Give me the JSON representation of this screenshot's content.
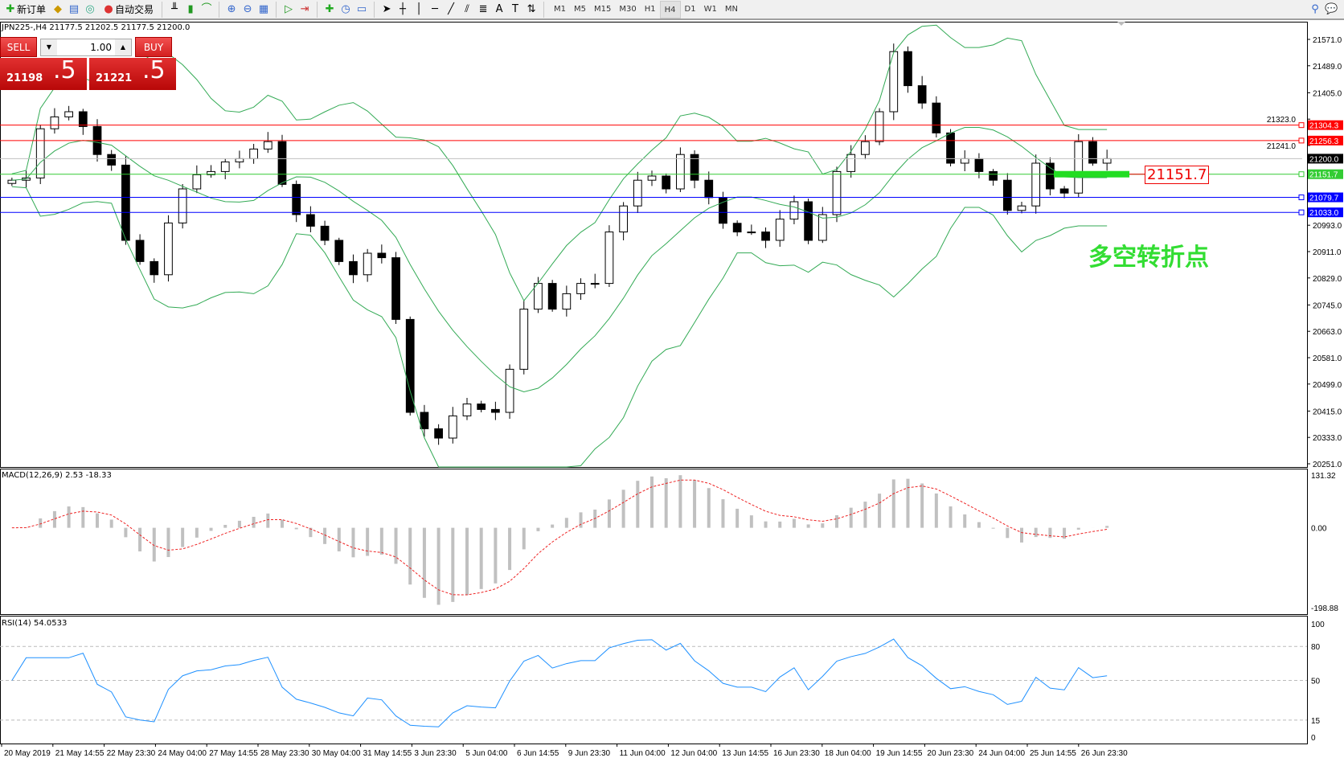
{
  "toolbar": {
    "new_order": "新订单",
    "auto_trade": "自动交易",
    "timeframes": [
      "M1",
      "M5",
      "M15",
      "M30",
      "H1",
      "H4",
      "D1",
      "W1",
      "MN"
    ],
    "active_timeframe": "H4"
  },
  "chart_info": "JPN225-,H4  21177.5 21202.5 21177.5 21200.0",
  "trade_panel": {
    "sell": "SELL",
    "buy": "BUY",
    "lot": "1.00",
    "sell_main": "21198",
    "sell_frac": ".5",
    "buy_main": "21221",
    "buy_frac": ".5"
  },
  "annotation": {
    "text": "多空转折点",
    "price_label": "21151.7"
  },
  "colors": {
    "up": "#ffffff",
    "down": "#000000",
    "bands": "#33aa55",
    "macd_signal": "#ee2222",
    "rsi": "#1e90ff"
  },
  "price_axis": {
    "ticks": [
      "21571.0",
      "21489.0",
      "21405.0",
      "21323.0",
      "21241.0",
      "20993.0",
      "20911.0",
      "20829.0",
      "20745.0",
      "20663.0",
      "20581.0",
      "20499.0",
      "20415.0",
      "20333.0",
      "20251.0"
    ],
    "min": 20251,
    "max": 21571
  },
  "levels": [
    {
      "price": 21304.3,
      "label": "21304.3",
      "color": "#ff0000"
    },
    {
      "price": 21256.3,
      "label": "21256.3",
      "color": "#ff0000"
    },
    {
      "price": 21200.0,
      "label": "21200.0",
      "color": "#000000",
      "line": "#c0c0c0"
    },
    {
      "price": 21151.7,
      "label": "21151.7",
      "color": "#33cc33"
    },
    {
      "price": 21079.7,
      "label": "21079.7",
      "color": "#0000ff"
    },
    {
      "price": 21033.0,
      "label": "21033.0",
      "color": "#0000ff"
    }
  ],
  "closes": [
    21133,
    21140,
    21293,
    21330,
    21346,
    21300,
    21213,
    21180,
    20946,
    20880,
    20839,
    21000,
    21106,
    21150,
    21160,
    21190,
    21200,
    21230,
    21253,
    21120,
    21026,
    20990,
    20946,
    20880,
    20839,
    20906,
    20892,
    20700,
    20411,
    20360,
    20331,
    20400,
    20437,
    20420,
    20411,
    20545,
    20732,
    20812,
    20732,
    20780,
    20812,
    20812,
    20972,
    21053,
    21133,
    21146,
    21106,
    21213,
    21133,
    21079,
    20999,
    20972,
    20972,
    20946,
    21012,
    21066,
    20946,
    21026,
    21160,
    21213,
    21253,
    21346,
    21533,
    21427,
    21373,
    21280,
    21186,
    21200,
    21160,
    21133,
    21039,
    21053,
    21186,
    21106,
    21093,
    21253,
    21186,
    21200
  ],
  "macd": {
    "label": "MACD(12,26,9) 2.53 -18.33",
    "ticks": [
      "131.32",
      "0.00",
      "-198.88"
    ],
    "max": 131.32,
    "min": -198.88
  },
  "rsi": {
    "label": "RSI(14) 54.0533",
    "ticks": [
      "100",
      "80",
      "50",
      "15",
      "0"
    ]
  },
  "time_axis": [
    "20 May 2019",
    "21 May 14:55",
    "22 May 23:30",
    "24 May 04:00",
    "27 May 14:55",
    "28 May 23:30",
    "30 May 04:00",
    "31 May 14:55",
    "3 Jun 23:30",
    "5 Jun 04:00",
    "6 Jun 14:55",
    "9 Jun 23:30",
    "11 Jun 04:00",
    "12 Jun 04:00",
    "13 Jun 14:55",
    "16 Jun 23:30",
    "18 Jun 04:00",
    "19 Jun 14:55",
    "20 Jun 23:30",
    "24 Jun 04:00",
    "25 Jun 14:55",
    "26 Jun 23:30"
  ]
}
